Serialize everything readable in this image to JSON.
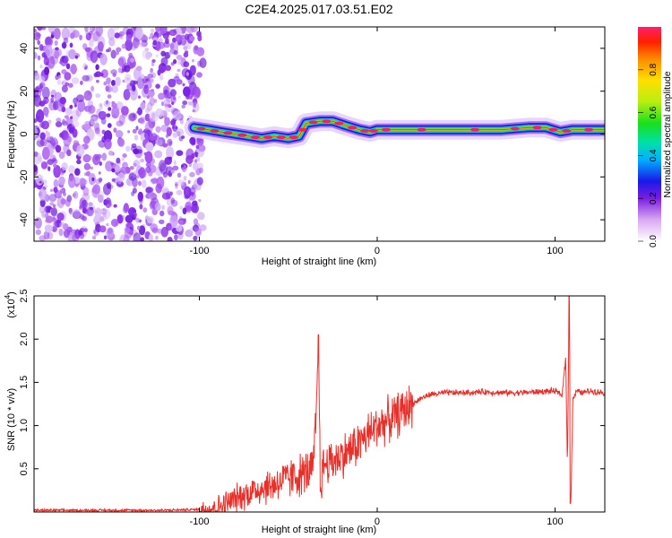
{
  "title": "C2E4.2025.017.03.51.E02",
  "chart_data": [
    {
      "type": "heatmap",
      "xlabel": "Height of straight line (km)",
      "ylabel": "Frequency (Hz)",
      "xlim": [
        -193,
        128
      ],
      "ylim": [
        -50,
        50
      ],
      "xticks": [
        -100,
        0,
        100
      ],
      "yticks": [
        -40,
        -20,
        0,
        20,
        40
      ],
      "colorbar": {
        "label": "Normalized spectral amplitude",
        "range": [
          0,
          1
        ],
        "ticks": [
          0.0,
          0.2,
          0.4,
          0.6,
          0.8
        ]
      },
      "noise_region_x": [
        -193,
        -103
      ],
      "ridge": [
        {
          "x": -103,
          "y": 3
        },
        {
          "x": -95,
          "y": 2
        },
        {
          "x": -88,
          "y": 1
        },
        {
          "x": -80,
          "y": 0
        },
        {
          "x": -72,
          "y": -1
        },
        {
          "x": -65,
          "y": -2
        },
        {
          "x": -58,
          "y": -1
        },
        {
          "x": -50,
          "y": -2
        },
        {
          "x": -44,
          "y": -1
        },
        {
          "x": -40,
          "y": 5
        },
        {
          "x": -32,
          "y": 6
        },
        {
          "x": -25,
          "y": 6
        },
        {
          "x": -18,
          "y": 4
        },
        {
          "x": -10,
          "y": 2
        },
        {
          "x": -4,
          "y": 1
        },
        {
          "x": 0,
          "y": 2
        },
        {
          "x": 10,
          "y": 2
        },
        {
          "x": 40,
          "y": 2
        },
        {
          "x": 70,
          "y": 2
        },
        {
          "x": 85,
          "y": 3
        },
        {
          "x": 95,
          "y": 3
        },
        {
          "x": 103,
          "y": 1
        },
        {
          "x": 110,
          "y": 2
        },
        {
          "x": 128,
          "y": 2
        }
      ]
    },
    {
      "type": "line",
      "xlabel": "Height of straight line (km)",
      "ylabel": "SNR (10 * v/v)",
      "y_multiplier": "(x10",
      "y_multiplier_exp": "4",
      "xlim": [
        -193,
        128
      ],
      "ylim": [
        0,
        2.5
      ],
      "xticks": [
        -100,
        0,
        100
      ],
      "yticks": [
        0.5,
        1.0,
        1.5,
        2.0,
        2.5
      ],
      "series": [
        {
          "color": "#e8302a",
          "x": [
            -193,
            -120,
            -100,
            -90,
            -85,
            -80,
            -75,
            -70,
            -65,
            -60,
            -55,
            -50,
            -45,
            -40,
            -36,
            -34,
            -33,
            -32,
            -30,
            -25,
            -20,
            -15,
            -10,
            -5,
            0,
            5,
            10,
            15,
            20,
            25,
            30,
            40,
            50,
            60,
            70,
            80,
            90,
            100,
            104,
            106,
            107,
            108,
            109,
            110,
            112,
            115,
            120,
            128
          ],
          "y": [
            0.02,
            0.02,
            0.03,
            0.05,
            0.1,
            0.15,
            0.2,
            0.24,
            0.28,
            0.3,
            0.35,
            0.38,
            0.42,
            0.45,
            0.5,
            1.2,
            2.05,
            0.3,
            0.55,
            0.6,
            0.65,
            0.72,
            0.8,
            0.9,
            1.0,
            1.05,
            1.1,
            1.18,
            1.25,
            1.32,
            1.36,
            1.38,
            1.38,
            1.39,
            1.38,
            1.38,
            1.39,
            1.4,
            1.35,
            1.8,
            0.5,
            2.5,
            0.1,
            1.3,
            1.4,
            1.38,
            1.4,
            1.38
          ]
        }
      ]
    }
  ]
}
